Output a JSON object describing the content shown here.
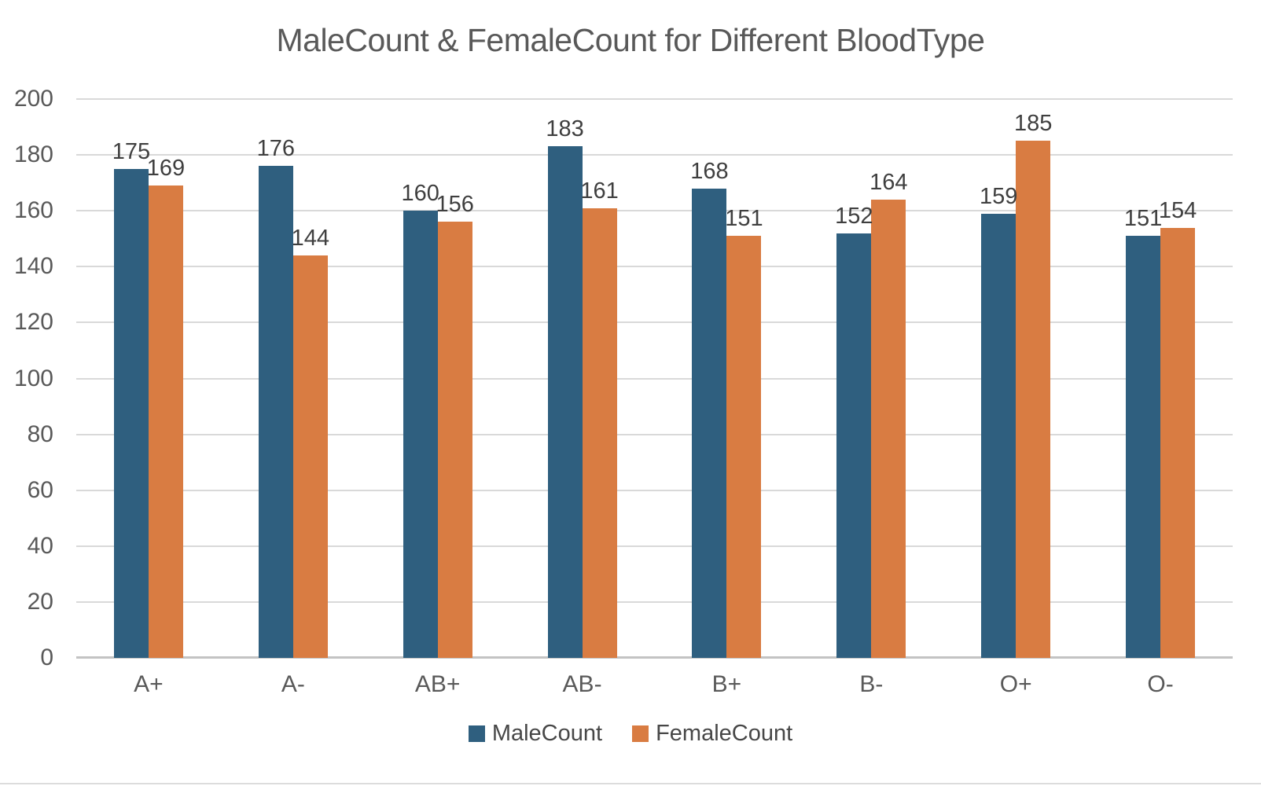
{
  "chart_data": {
    "type": "bar",
    "title": "MaleCount & FemaleCount for Different BloodType",
    "categories": [
      "A+",
      "A-",
      "AB+",
      "AB-",
      "B+",
      "B-",
      "O+",
      "O-"
    ],
    "series": [
      {
        "name": "MaleCount",
        "color": "#2F5F7F",
        "values": [
          175,
          176,
          160,
          183,
          168,
          152,
          159,
          151
        ]
      },
      {
        "name": "FemaleCount",
        "color": "#D97C42",
        "values": [
          169,
          144,
          156,
          161,
          151,
          164,
          185,
          154
        ]
      }
    ],
    "xlabel": "",
    "ylabel": "",
    "ylim": [
      0,
      200
    ],
    "yticks": [
      0,
      20,
      40,
      60,
      80,
      100,
      120,
      140,
      160,
      180,
      200
    ],
    "grid": true,
    "legend_position": "bottom",
    "data_labels": true
  },
  "colors": {
    "male_bar": "#2F5F7F",
    "female_bar": "#D97C42",
    "gridline": "#D9D9D9",
    "baseline": "#C3C3C3",
    "title_text": "#595959",
    "axis_text": "#595959",
    "data_label_text": "#3F3F3F",
    "legend_text": "#474747",
    "background": "#FFFFFF"
  }
}
